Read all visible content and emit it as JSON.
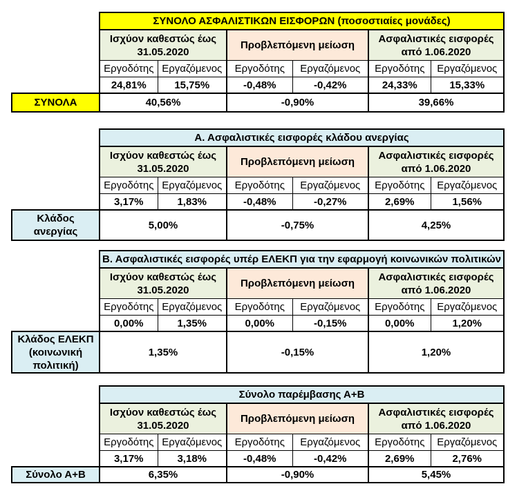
{
  "colors": {
    "title_yellow": "#ffff00",
    "header_green": "#ebf1de",
    "header_peach": "#fde9d9",
    "header_blue": "#daeef3",
    "border": "#000000",
    "cell_background": "#ffffff"
  },
  "column_headers": {
    "employer": "Εργοδότης",
    "employee": "Εργαζόμενος"
  },
  "group_headers": {
    "current_regime": {
      "line1": "Ισχύον καθεστώς έως",
      "line2": "31.05.2020"
    },
    "projected_reduction": "Προβλεπόμενη μείωση",
    "new_contributions": {
      "line1": "Ασφαλιστικές εισφορές",
      "line2": "από 1.06.2020"
    }
  },
  "tables": [
    {
      "title": "ΣΥΝΟΛΟ ΑΣΦΑΛΙΣΤΙΚΩΝ ΕΙΣΦΟΡΩΝ (ποσοστιαίες μονάδες)",
      "values": [
        "24,81%",
        "15,75%",
        "-0,48%",
        "-0,42%",
        "24,33%",
        "15,33%"
      ],
      "row_label_lines": [
        "ΣΥΝΟΛΑ"
      ],
      "row_totals": [
        "40,56%",
        "-0,90%",
        "39,66%"
      ]
    },
    {
      "title": "Α. Ασφαλιστικές εισφορές κλάδου ανεργίας",
      "values": [
        "3,17%",
        "1,83%",
        "-0,48%",
        "-0,27%",
        "2,69%",
        "1,56%"
      ],
      "row_label_lines": [
        "Κλάδος",
        "ανεργίας"
      ],
      "row_totals": [
        "5,00%",
        "-0,75%",
        "4,25%"
      ]
    },
    {
      "title": "Β. Ασφαλιστικές εισφορές υπέρ ΕΛΕΚΠ για την εφαρμογή κοινωνικών πολιτικών",
      "values": [
        "0,00%",
        "1,35%",
        "0,00%",
        "-0,15%",
        "0,00%",
        "1,20%"
      ],
      "row_label_lines": [
        "Κλάδος ΕΛΕΚΠ",
        "(κοινωνική",
        "πολιτική)"
      ],
      "row_totals": [
        "1,35%",
        "-0,15%",
        "1,20%"
      ]
    },
    {
      "title": "Σύνολο παρέμβασης Α+Β",
      "values": [
        "3,17%",
        "3,18%",
        "-0,48%",
        "-0,42%",
        "2,69%",
        "2,76%"
      ],
      "row_label_lines": [
        "Σύνολο Α+Β"
      ],
      "row_totals": [
        "6,35%",
        "-0,90%",
        "5,45%"
      ]
    }
  ]
}
